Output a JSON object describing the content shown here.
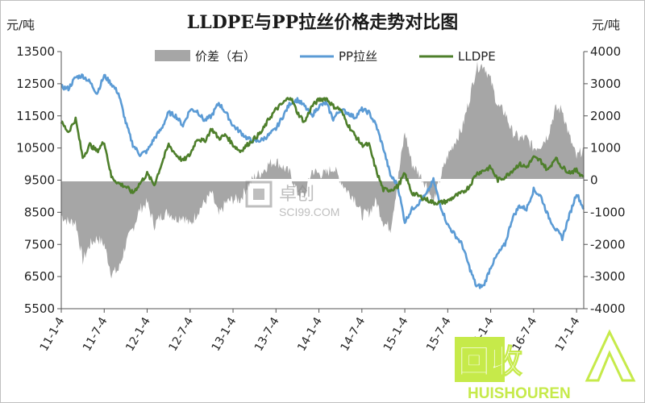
{
  "chart_data": {
    "type": "line",
    "title": "LLDPE与PP拉丝价格走势对比图",
    "y_left_unit": "元/吨",
    "y_right_unit": "元/吨",
    "y_left_range": [
      5500,
      13500
    ],
    "y_left_ticks": [
      "13500",
      "12500",
      "11500",
      "10500",
      "9500",
      "8500",
      "7500",
      "6500",
      "5500"
    ],
    "y_right_range": [
      -4000,
      4000
    ],
    "y_right_ticks": [
      "4000",
      "3000",
      "2000",
      "1000",
      "0",
      "-1000",
      "-2000",
      "-3000",
      "-4000"
    ],
    "x_range": [
      0,
      73
    ],
    "x_ticks": [
      {
        "x": 0,
        "label": "11-1-4"
      },
      {
        "x": 6,
        "label": "11-7-4"
      },
      {
        "x": 12,
        "label": "12-1-4"
      },
      {
        "x": 18,
        "label": "12-7-4"
      },
      {
        "x": 24,
        "label": "13-1-4"
      },
      {
        "x": 30,
        "label": "13-7-4"
      },
      {
        "x": 36,
        "label": "14-1-4"
      },
      {
        "x": 42,
        "label": "14-7-4"
      },
      {
        "x": 48,
        "label": "15-1-4"
      },
      {
        "x": 54,
        "label": "15-7-4"
      },
      {
        "x": 60,
        "label": "16-1-4"
      },
      {
        "x": 66,
        "label": "16-7-4"
      },
      {
        "x": 72,
        "label": "17-1-4"
      }
    ],
    "legend": [
      "价差（右）",
      "PP拉丝",
      "LLDPE"
    ],
    "legend_position": "top",
    "grid": false,
    "series": [
      {
        "name": "PP拉丝",
        "axis": "left",
        "color": "#5b9bd5",
        "x": [
          0,
          1,
          2,
          3,
          4,
          5,
          6,
          7,
          8,
          9,
          10,
          11,
          12,
          13,
          14,
          15,
          16,
          17,
          18,
          19,
          20,
          21,
          22,
          23,
          24,
          25,
          26,
          27,
          28,
          29,
          30,
          31,
          32,
          33,
          34,
          35,
          36,
          37,
          38,
          39,
          40,
          41,
          42,
          43,
          44,
          45,
          46,
          47,
          48,
          49,
          50,
          51,
          52,
          53,
          54,
          55,
          56,
          57,
          58,
          59,
          60,
          61,
          62,
          63,
          64,
          65,
          66,
          67,
          68,
          69,
          70,
          71,
          72,
          73
        ],
        "y": [
          12400,
          12350,
          12700,
          12750,
          12550,
          12200,
          12750,
          12500,
          12200,
          11300,
          10600,
          10300,
          10400,
          10800,
          11100,
          11600,
          11500,
          11200,
          11700,
          11650,
          11350,
          11500,
          11900,
          11600,
          11200,
          11000,
          10800,
          10700,
          10750,
          10900,
          11100,
          11500,
          11900,
          12000,
          11800,
          11500,
          11800,
          11900,
          11400,
          11700,
          11600,
          11450,
          11700,
          11600,
          11200,
          10500,
          9650,
          9350,
          8200,
          8600,
          8800,
          9050,
          9500,
          8700,
          8100,
          7800,
          7500,
          6800,
          6200,
          6200,
          6800,
          7200,
          7500,
          8300,
          8700,
          8600,
          9200,
          9000,
          8400,
          8000,
          7700,
          8400,
          9100,
          8600
        ],
        "noise": 70
      },
      {
        "name": "LLDPE",
        "axis": "left",
        "color": "#4e7f2b",
        "x": [
          0,
          1,
          2,
          3,
          4,
          5,
          6,
          7,
          8,
          9,
          10,
          11,
          12,
          13,
          14,
          15,
          16,
          17,
          18,
          19,
          20,
          21,
          22,
          23,
          24,
          25,
          26,
          27,
          28,
          29,
          30,
          31,
          32,
          33,
          34,
          35,
          36,
          37,
          38,
          39,
          40,
          41,
          42,
          43,
          44,
          45,
          46,
          47,
          48,
          49,
          50,
          51,
          52,
          53,
          54,
          55,
          56,
          57,
          58,
          59,
          60,
          61,
          62,
          63,
          64,
          65,
          66,
          67,
          68,
          69,
          70,
          71,
          72,
          73
        ],
        "y": [
          11300,
          11000,
          11400,
          10200,
          10600,
          10400,
          10700,
          9600,
          9400,
          9300,
          9100,
          9400,
          9700,
          9350,
          10000,
          10600,
          10300,
          10100,
          10300,
          10800,
          10700,
          11100,
          10800,
          10900,
          10600,
          10400,
          10600,
          10800,
          11000,
          11400,
          11700,
          11900,
          12100,
          11600,
          11300,
          11800,
          12000,
          12050,
          11800,
          11700,
          11250,
          10900,
          10600,
          10600,
          9800,
          9200,
          9200,
          9300,
          9700,
          9100,
          9000,
          8900,
          8800,
          8800,
          8850,
          9000,
          9100,
          9300,
          9700,
          9800,
          9900,
          9500,
          9600,
          9800,
          10000,
          9900,
          10200,
          10100,
          9800,
          10200,
          9900,
          9750,
          9800,
          9600
        ],
        "noise": 70
      },
      {
        "name": "价差（右）",
        "axis": "right",
        "color": "#a6a6a6",
        "x": [
          0,
          1,
          2,
          3,
          4,
          5,
          6,
          7,
          8,
          9,
          10,
          11,
          12,
          13,
          14,
          15,
          16,
          17,
          18,
          19,
          20,
          21,
          22,
          23,
          24,
          25,
          26,
          27,
          28,
          29,
          30,
          31,
          32,
          33,
          34,
          35,
          36,
          37,
          38,
          39,
          40,
          41,
          42,
          43,
          44,
          45,
          46,
          47,
          48,
          49,
          50,
          51,
          52,
          53,
          54,
          55,
          56,
          57,
          58,
          59,
          60,
          61,
          62,
          63,
          64,
          65,
          66,
          67,
          68,
          69,
          70,
          71,
          72,
          73
        ],
        "y": [
          -1100,
          -1300,
          -1300,
          -2500,
          -2000,
          -1800,
          -2000,
          -2900,
          -2800,
          -2000,
          -1500,
          -900,
          -700,
          -1400,
          -1100,
          -1000,
          -1200,
          -1100,
          -1400,
          -1000,
          -700,
          -400,
          -1100,
          -700,
          -600,
          -600,
          -200,
          100,
          250,
          500,
          600,
          400,
          200,
          -400,
          -500,
          300,
          200,
          200,
          400,
          0,
          -350,
          -550,
          -1100,
          -1000,
          -650,
          -1300,
          -1500,
          -50,
          1500,
          500,
          200,
          -150,
          -700,
          100,
          750,
          1200,
          1600,
          2500,
          3500,
          3600,
          3100,
          2300,
          2100,
          1500,
          1300,
          1300,
          1000,
          1100,
          1400,
          2200,
          2200,
          1350,
          700,
          1000
        ],
        "noise": 180
      }
    ],
    "watermark": {
      "cn": "卓创",
      "en": "SCI99.COM"
    },
    "brand_overlay": {
      "cn": "回收",
      "en": "HUISHOUREN"
    }
  }
}
